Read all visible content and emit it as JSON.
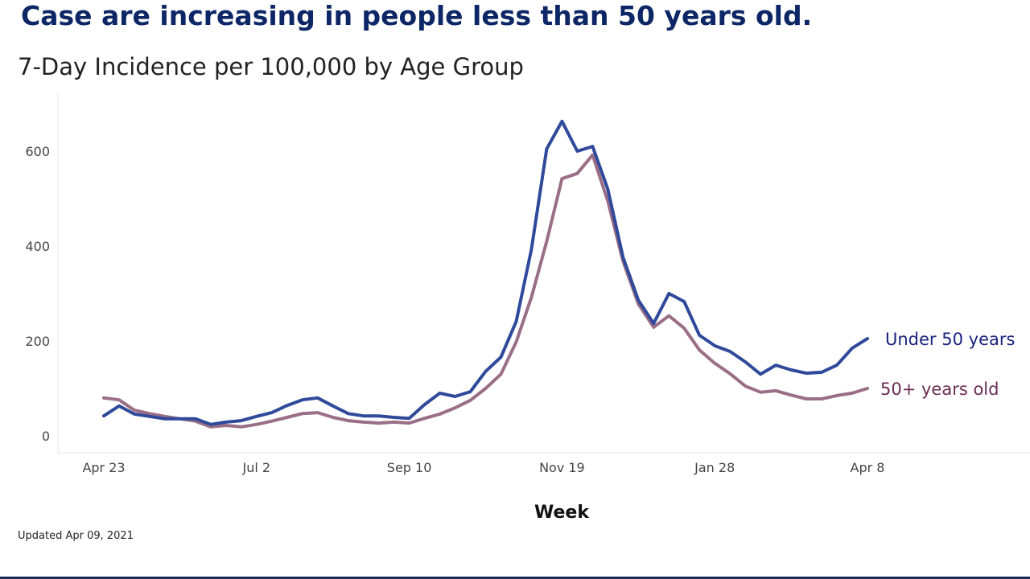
{
  "headline": "Case are increasing in people less than 50 years old.",
  "updated": "Updated Apr 09, 2021",
  "chart_data": {
    "type": "line",
    "title": "7-Day Incidence per 100,000 by Age Group",
    "xlabel": "Week",
    "ylabel": "",
    "ylim": [
      0,
      700
    ],
    "yticks": [
      0,
      200,
      400,
      600
    ],
    "x_tick_labels": [
      {
        "week_index": 0,
        "label": "Apr 23"
      },
      {
        "week_index": 10,
        "label": "Jul 2"
      },
      {
        "week_index": 20,
        "label": "Sep 10"
      },
      {
        "week_index": 30,
        "label": "Nov 19"
      },
      {
        "week_index": 40,
        "label": "Jan 28"
      },
      {
        "week_index": 50,
        "label": "Apr 8"
      }
    ],
    "grid": false,
    "legend": "direct labels at line ends (right)",
    "series": [
      {
        "name": "Under 50 years",
        "color": "#2f4a9a",
        "label_color": "#1a237e",
        "values": [
          42,
          63,
          46,
          41,
          36,
          36,
          36,
          24,
          29,
          32,
          41,
          49,
          64,
          76,
          80,
          63,
          47,
          42,
          42,
          39,
          37,
          66,
          90,
          83,
          93,
          136,
          166,
          241,
          393,
          605,
          663,
          600,
          610,
          520,
          376,
          286,
          237,
          300,
          283,
          212,
          190,
          178,
          156,
          130,
          149,
          139,
          132,
          134,
          149,
          185,
          205
        ]
      },
      {
        "name": "50+ years old",
        "color": "#9a6e86",
        "label_color": "#6b2d55",
        "values": [
          80,
          76,
          54,
          47,
          41,
          36,
          31,
          19,
          22,
          19,
          24,
          31,
          39,
          47,
          49,
          39,
          32,
          29,
          27,
          29,
          27,
          37,
          46,
          59,
          75,
          100,
          130,
          198,
          292,
          410,
          542,
          553,
          592,
          495,
          368,
          278,
          229,
          253,
          227,
          181,
          153,
          131,
          105,
          92,
          95,
          86,
          78,
          78,
          85,
          90,
          100
        ]
      }
    ]
  }
}
